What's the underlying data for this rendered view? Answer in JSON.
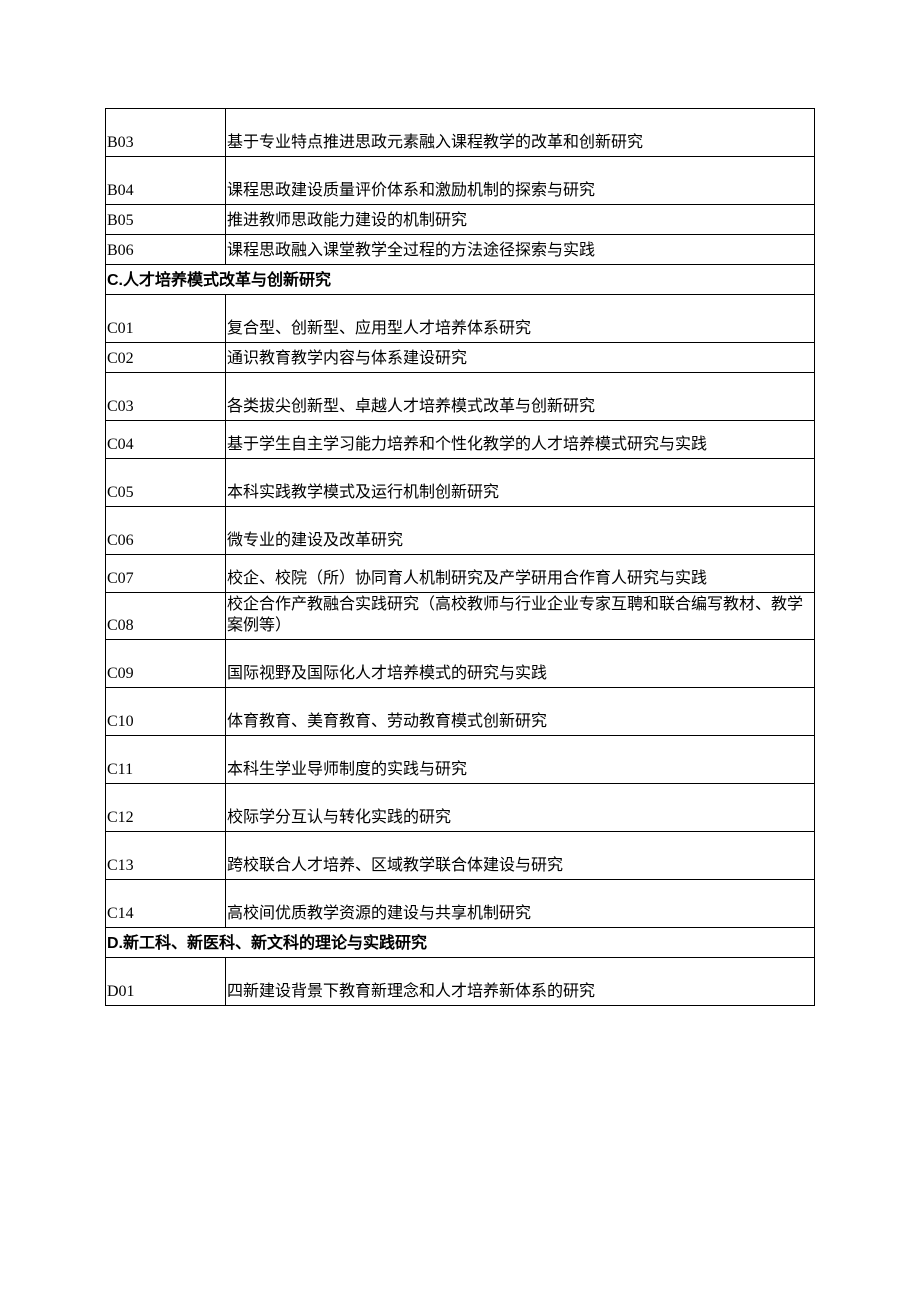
{
  "table": {
    "colors": {
      "border": "#000000",
      "text": "#000000",
      "background": "#ffffff"
    },
    "font_size": 16,
    "code_col_width": 120,
    "rows": [
      {
        "type": "item",
        "code": "B03",
        "desc": "基于专业特点推进思政元素融入课程教学的改革和创新研究",
        "height": "tall"
      },
      {
        "type": "item",
        "code": "B04",
        "desc": "课程思政建设质量评价体系和激励机制的探索与研究",
        "height": "tall"
      },
      {
        "type": "item",
        "code": "B05",
        "desc": "推进教师思政能力建设的机制研究",
        "height": "short"
      },
      {
        "type": "item",
        "code": "B06",
        "desc": "课程思政融入课堂教学全过程的方法途径探索与实践",
        "height": "short"
      },
      {
        "type": "header",
        "title": "C.人才培养模式改革与创新研究",
        "height": "header-row"
      },
      {
        "type": "item",
        "code": "C01",
        "desc": "复合型、创新型、应用型人才培养体系研究",
        "height": "tall"
      },
      {
        "type": "item",
        "code": "C02",
        "desc": "通识教育教学内容与体系建设研究",
        "height": "short"
      },
      {
        "type": "item",
        "code": "C03",
        "desc": "各类拔尖创新型、卓越人才培养模式改革与创新研究",
        "height": "tall"
      },
      {
        "type": "item",
        "code": "C04",
        "desc": "基于学生自主学习能力培养和个性化教学的人才培养模式研究与实践",
        "height": "medium"
      },
      {
        "type": "item",
        "code": "C05",
        "desc": "本科实践教学模式及运行机制创新研究",
        "height": "tall"
      },
      {
        "type": "item",
        "code": "C06",
        "desc": "微专业的建设及改革研究",
        "height": "tall"
      },
      {
        "type": "item",
        "code": "C07",
        "desc": "校企、校院（所）协同育人机制研究及产学研用合作育人研究与实践",
        "height": "medium"
      },
      {
        "type": "item",
        "code": "C08",
        "desc": "校企合作产教融合实践研究（高校教师与行业企业专家互聘和联合编写教材、教学案例等）",
        "height": "medium"
      },
      {
        "type": "item",
        "code": "C09",
        "desc": "国际视野及国际化人才培养模式的研究与实践",
        "height": "tall"
      },
      {
        "type": "item",
        "code": "C10",
        "desc": "体育教育、美育教育、劳动教育模式创新研究",
        "height": "tall"
      },
      {
        "type": "item",
        "code": "C11",
        "desc": "本科生学业导师制度的实践与研究",
        "height": "tall"
      },
      {
        "type": "item",
        "code": "C12",
        "desc": "校际学分互认与转化实践的研究",
        "height": "tall"
      },
      {
        "type": "item",
        "code": "C13",
        "desc": "跨校联合人才培养、区域教学联合体建设与研究",
        "height": "tall"
      },
      {
        "type": "item",
        "code": "C14",
        "desc": "高校间优质教学资源的建设与共享机制研究",
        "height": "tall"
      },
      {
        "type": "header",
        "title": "D.新工科、新医科、新文科的理论与实践研究",
        "height": "header-row"
      },
      {
        "type": "item",
        "code": "D01",
        "desc": "四新建设背景下教育新理念和人才培养新体系的研究",
        "height": "tall"
      }
    ]
  }
}
